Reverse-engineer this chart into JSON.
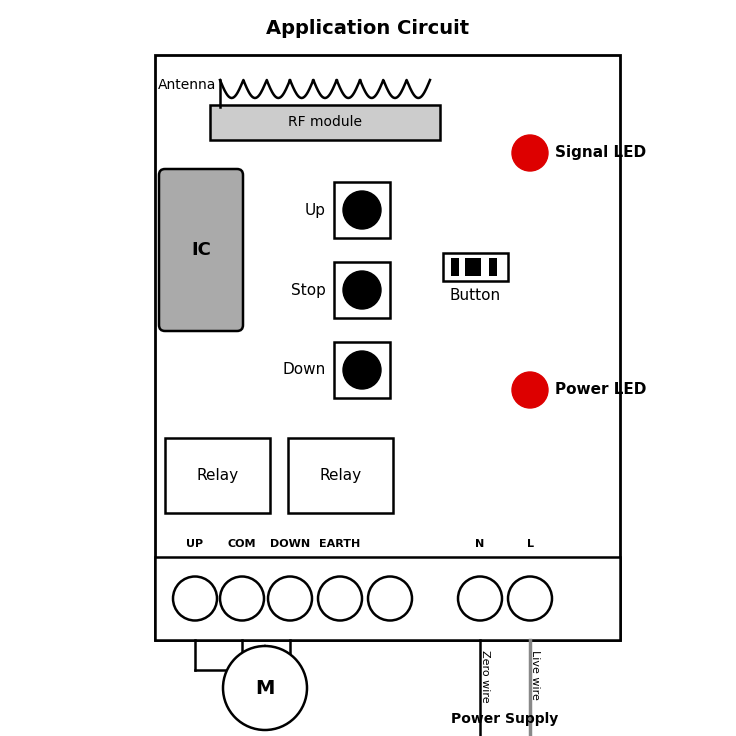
{
  "title": "Application Circuit",
  "bg_color": "#ffffff",
  "border_color": "#000000",
  "antenna_label": "Antenna",
  "rf_module_label": "RF module",
  "ic_label": "IC",
  "signal_led_label": "Signal LED",
  "power_led_label": "Power LED",
  "button_label": "Button",
  "up_label": "Up",
  "stop_label": "Stop",
  "down_label": "Down",
  "relay1_label": "Relay",
  "relay2_label": "Relay",
  "terminal_labels": [
    "UP",
    "COM",
    "DOWN",
    "EARTH",
    "",
    "N",
    "L"
  ],
  "motor_label": "M",
  "zero_wire_label": "Zero wire",
  "live_wire_label": "Live wire",
  "power_supply_label": "Power Supply",
  "led_color": "#dd0000",
  "gray_color": "#888888",
  "title_fontsize": 14,
  "label_fontsize": 11,
  "small_fontsize": 9
}
